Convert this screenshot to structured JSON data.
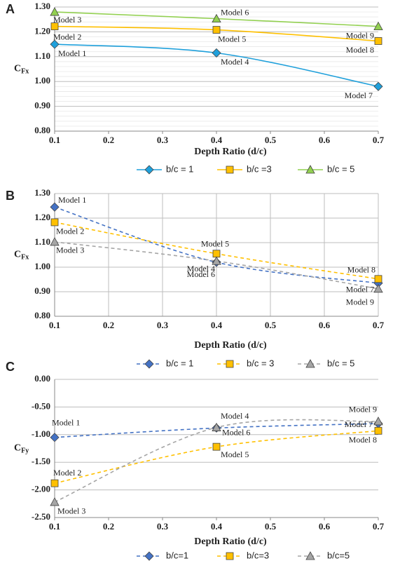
{
  "chart_data": [
    {
      "type": "line",
      "panel": "A",
      "x_label": "Depth Ratio (d/c)",
      "y_label": "C",
      "y_label_sub": "Fx",
      "x": [
        0.1,
        0.4,
        0.7
      ],
      "xlim": [
        0.1,
        0.7
      ],
      "xticks": [
        0.1,
        0.2,
        0.3,
        0.4,
        0.5,
        0.6,
        0.7
      ],
      "ylim": [
        0.8,
        1.3
      ],
      "yticks": [
        {
          "value": 0.8,
          "label": "0.80"
        },
        {
          "value": 0.9,
          "label": "0.90"
        },
        {
          "value": 1.0,
          "label": "1.00"
        },
        {
          "value": 1.1,
          "label": "1.10"
        },
        {
          "value": 1.2,
          "label": "1.20"
        },
        {
          "value": 1.3,
          "label": "1.30"
        }
      ],
      "grid": "y",
      "minor_grid": true,
      "line_style": "solid",
      "series": [
        {
          "name": "b/c = 1",
          "color": "#1fa0db",
          "marker": "diamond",
          "values": [
            1.15,
            1.115,
            0.98
          ],
          "point_labels": [
            "Model 1",
            "Model 4",
            "Model 7"
          ]
        },
        {
          "name": "b/c =3",
          "color": "#ffc000",
          "marker": "square",
          "values": [
            1.222,
            1.208,
            1.163
          ],
          "point_labels": [
            "Model 2",
            "Model 5",
            "Model 8"
          ]
        },
        {
          "name": "b/c = 5",
          "color": "#92d050",
          "marker": "triangle",
          "values": [
            1.28,
            1.253,
            1.222
          ],
          "point_labels": [
            "Model 3",
            "Model 6",
            "Model 9"
          ]
        }
      ]
    },
    {
      "type": "line",
      "panel": "B",
      "x_label": "Depth Ratio (d/c)",
      "y_label": "C",
      "y_label_sub": "Fx",
      "x": [
        0.1,
        0.4,
        0.7
      ],
      "xlim": [
        0.1,
        0.7
      ],
      "xticks": [
        0.1,
        0.2,
        0.3,
        0.4,
        0.5,
        0.6,
        0.7
      ],
      "ylim": [
        0.8,
        1.3
      ],
      "yticks": [
        {
          "value": 0.8,
          "label": "0.80"
        },
        {
          "value": 0.9,
          "label": "0.90"
        },
        {
          "value": 1.0,
          "label": "1.00"
        },
        {
          "value": 1.1,
          "label": "1.10"
        },
        {
          "value": 1.2,
          "label": "1.20"
        },
        {
          "value": 1.3,
          "label": "1.30"
        }
      ],
      "grid": "both",
      "minor_grid": false,
      "line_style": "dashed",
      "series": [
        {
          "name": "b/c = 1",
          "color": "#4472c4",
          "marker": "diamond",
          "values": [
            1.245,
            1.02,
            0.935
          ],
          "point_labels": [
            "Model 1",
            "Model 4",
            "Model 7"
          ]
        },
        {
          "name": "b/c = 3",
          "color": "#ffc000",
          "marker": "square",
          "values": [
            1.183,
            1.055,
            0.952
          ],
          "point_labels": [
            "Model 2",
            "Model 5",
            "Model 8"
          ]
        },
        {
          "name": "b/c = 5",
          "color": "#a5a5a5",
          "marker": "triangle",
          "values": [
            1.103,
            1.025,
            0.912
          ],
          "point_labels": [
            "Model 3",
            "Model 6",
            "Model 9"
          ]
        }
      ]
    },
    {
      "type": "line",
      "panel": "C",
      "x_label": "Depth Ratio (d/c)",
      "y_label": "C",
      "y_label_sub": "Fy",
      "x": [
        0.1,
        0.4,
        0.7
      ],
      "xlim": [
        0.1,
        0.7
      ],
      "xticks": [
        0.1,
        0.2,
        0.3,
        0.4,
        0.5,
        0.6,
        0.7
      ],
      "ylim": [
        -2.5,
        0
      ],
      "yticks": [
        {
          "value": -2.5,
          "label": "-2.50"
        },
        {
          "value": -2.0,
          "label": "-2.00"
        },
        {
          "value": -1.5,
          "label": "-1.50"
        },
        {
          "value": -1.0,
          "label": "-1.00"
        },
        {
          "value": -0.5,
          "label": "-0.50"
        },
        {
          "value": 0,
          "label": "0.00"
        }
      ],
      "grid": "y",
      "minor_grid": false,
      "line_style": "dashed",
      "series": [
        {
          "name": "b/c=1",
          "color": "#4472c4",
          "marker": "diamond",
          "values": [
            -1.05,
            -0.88,
            -0.8
          ],
          "point_labels": [
            "Model 1",
            "Model 4",
            "Model 7"
          ]
        },
        {
          "name": "b/c=3",
          "color": "#ffc000",
          "marker": "square",
          "values": [
            -1.88,
            -1.22,
            -0.93
          ],
          "point_labels": [
            "Model 2",
            "Model 5",
            "Model 8"
          ]
        },
        {
          "name": "b/c=5",
          "color": "#a5a5a5",
          "marker": "triangle",
          "values": [
            -2.22,
            -0.87,
            -0.76
          ],
          "point_labels": [
            "Model 3",
            "Model 6",
            "Model 9"
          ]
        }
      ]
    }
  ]
}
